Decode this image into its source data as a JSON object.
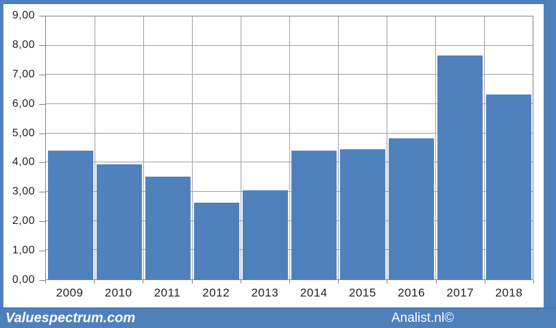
{
  "footer": {
    "left_text": "Valuespectrum.com",
    "right_text": "Analist.nl©"
  },
  "colors": {
    "frame": "#4E80BC",
    "bar": "#4F81BD",
    "footer_bg": "#4E80BC",
    "footer_divider": "#3D6CA3",
    "footer_text": "#FFFFFF",
    "gridline": "#9E9E9E",
    "plot_border": "#7F7F7F",
    "tick": "#7F7F7F",
    "label_text": "#1F1F1F"
  },
  "chart_data": {
    "type": "bar",
    "title": "",
    "xlabel": "",
    "ylabel": "",
    "categories": [
      "2009",
      "2010",
      "2011",
      "2012",
      "2013",
      "2014",
      "2015",
      "2016",
      "2017",
      "2018"
    ],
    "values": [
      4.4,
      3.93,
      3.52,
      2.62,
      3.04,
      4.41,
      4.45,
      4.84,
      7.66,
      6.32
    ],
    "ylim": [
      0,
      9
    ],
    "ytick_step": 1,
    "ytick_labels": [
      "0,00",
      "1,00",
      "2,00",
      "3,00",
      "4,00",
      "5,00",
      "6,00",
      "7,00",
      "8,00",
      "9,00"
    ],
    "grid": "both",
    "legend": "none",
    "bar_color": "#4F81BD"
  }
}
